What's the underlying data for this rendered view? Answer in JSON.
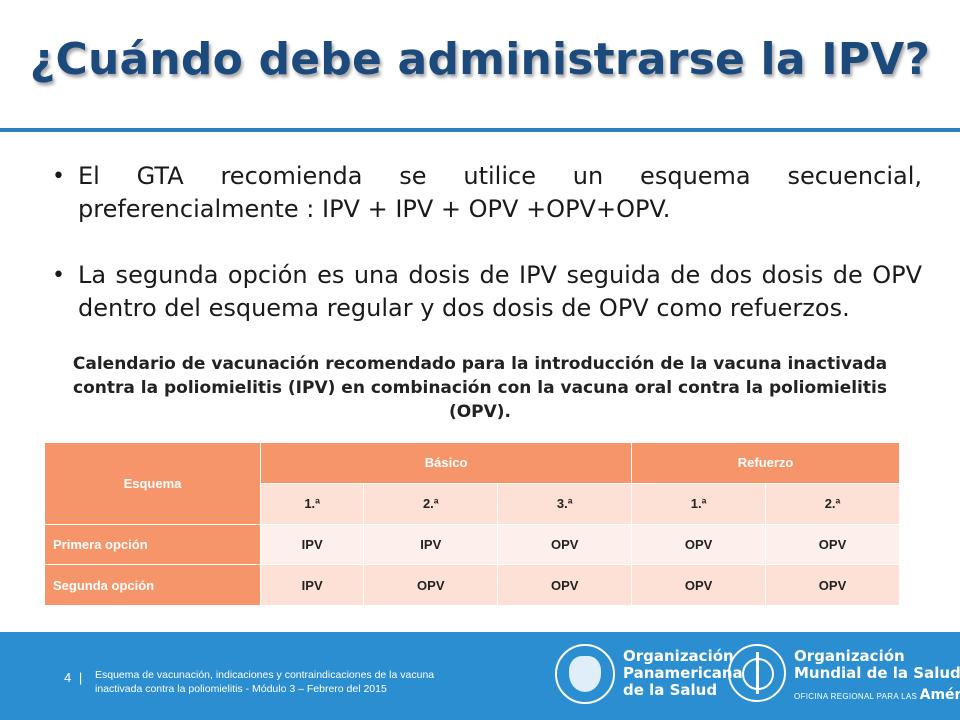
{
  "slide": {
    "title": "¿Cuándo debe administrarse la IPV?"
  },
  "bullets": [
    "El GTA recomienda se utilice un esquema secuencial, preferencialmente : IPV + IPV + OPV +OPV+OPV.",
    "La segunda opción es una dosis de IPV seguida de dos dosis de OPV dentro del esquema regular y dos dosis de OPV como refuerzos."
  ],
  "table": {
    "caption": "Calendario de vacunación recomendado para la introducción de la vacuna inactivada contra la poliomielitis (IPV) en combinación con la vacuna oral contra la poliomielitis (OPV).",
    "header": {
      "esquema": "Esquema",
      "basico": "Básico",
      "refuerzo": "Refuerzo"
    },
    "subheaders": [
      "1.ª",
      "2.ª",
      "3.ª",
      "1.ª",
      "2.ª"
    ],
    "rows": [
      {
        "label": "Primera opción",
        "values": [
          "IPV",
          "IPV",
          "OPV",
          "OPV",
          "OPV"
        ]
      },
      {
        "label": "Segunda opción",
        "values": [
          "IPV",
          "OPV",
          "OPV",
          "OPV",
          "OPV"
        ]
      }
    ]
  },
  "footer": {
    "page_number": "4",
    "page_separator": "|",
    "text_line1": "Esquema de vacunación, indicaciones y contraindicaciones de la vacuna",
    "text_line2": "inactivada contra la poliomielitis - Módulo 3 – Febrero del 2015",
    "ops_logo": {
      "line1": "Organización",
      "line2": "Panamericana",
      "line3": "de la Salud",
      "icon": "paho-emblem-icon"
    },
    "oms_logo": {
      "line1": "Organización",
      "line2": "Mundial de la Salud",
      "sub_prefix": "OFICINA REGIONAL PARA LAS",
      "sub_region": "Américas",
      "icon": "who-emblem-icon"
    },
    "background_color": "#2b8ed0"
  },
  "colors": {
    "title": "#1d4a7c",
    "rule": "#2f7fbf",
    "table_header": "#f7956a",
    "table_light": "#fdf0ea",
    "table_mid": "#fde1d6"
  }
}
